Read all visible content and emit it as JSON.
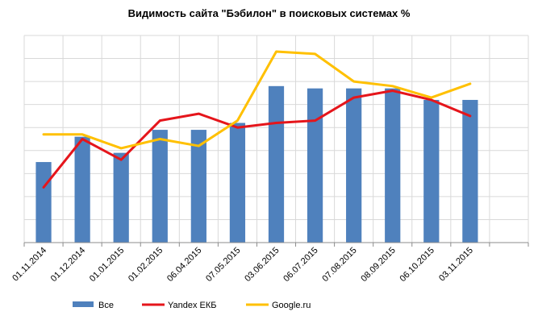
{
  "chart_data": {
    "type": "bar",
    "title": "Видимость сайта \"Бэбилон\" в поисковых системах %",
    "xlabel": "",
    "ylabel": "",
    "categories": [
      "01.11.2014",
      "01.12.2014",
      "01.01.2015",
      "01.02.2015",
      "06.04.2015",
      "07.05.2015",
      "03.06.2015",
      "06.07.2015",
      "07.08.2015",
      "08.09.2015",
      "06.10.2015",
      "03.11.2015"
    ],
    "ylim": [
      0,
      9
    ],
    "grid": true,
    "legend_position": "bottom",
    "series": [
      {
        "name": "Все",
        "kind": "bar",
        "color": "#4f81bd",
        "values": [
          3.5,
          4.6,
          3.9,
          4.9,
          4.9,
          5.2,
          6.8,
          6.7,
          6.7,
          6.7,
          6.2,
          6.2
        ]
      },
      {
        "name": "Yandex ЕКБ",
        "kind": "line",
        "color": "#e5151b",
        "values": [
          2.4,
          4.5,
          3.6,
          5.3,
          5.6,
          5.0,
          5.2,
          5.3,
          6.3,
          6.6,
          6.2,
          5.5
        ]
      },
      {
        "name": "Google.ru",
        "kind": "line",
        "color": "#ffc000",
        "values": [
          4.7,
          4.7,
          4.1,
          4.5,
          4.2,
          5.3,
          8.3,
          8.2,
          7.0,
          6.8,
          6.3,
          6.9
        ]
      }
    ]
  }
}
